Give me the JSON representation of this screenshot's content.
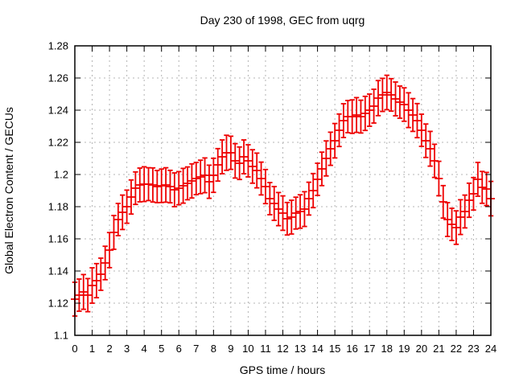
{
  "title": "Day 230 of 1998, GEC from uqrg",
  "x_axis": {
    "label": "GPS time / hours",
    "min": 0,
    "max": 24,
    "tick_labels": [
      "0",
      "1",
      "2",
      "3",
      "4",
      "5",
      "6",
      "7",
      "8",
      "9",
      "10",
      "11",
      "12",
      "13",
      "14",
      "15",
      "16",
      "17",
      "18",
      "19",
      "20",
      "21",
      "22",
      "23",
      "24"
    ]
  },
  "y_axis": {
    "label": "Global Electron Content / GECUs",
    "min": 1.1,
    "max": 1.28,
    "tick_labels": [
      "1.1",
      "1.12",
      "1.14",
      "1.16",
      "1.18",
      "1.2",
      "1.22",
      "1.24",
      "1.26",
      "1.28"
    ],
    "tick_values": [
      1.1,
      1.12,
      1.14,
      1.16,
      1.18,
      1.2,
      1.22,
      1.24,
      1.26,
      1.28
    ]
  },
  "colors": {
    "series": "#ee0000",
    "grid": "#b4b4b4",
    "axis": "#000000",
    "background": "#ffffff",
    "text": "#000000"
  },
  "chart_data": {
    "type": "scatter",
    "style": "errorbars",
    "grid": true,
    "legend": "none",
    "title": "Day 230 of 1998, GEC from uqrg",
    "xlabel": "GPS time / hours",
    "ylabel": "Global Electron Content / GECUs",
    "xlim": [
      0,
      24
    ],
    "ylim": [
      1.1,
      1.28
    ],
    "x": [
      0,
      0.25,
      0.5,
      0.75,
      1,
      1.25,
      1.5,
      1.75,
      2,
      2.25,
      2.5,
      2.75,
      3,
      3.25,
      3.5,
      3.75,
      4,
      4.25,
      4.5,
      4.75,
      5,
      5.25,
      5.5,
      5.75,
      6,
      6.25,
      6.5,
      6.75,
      7,
      7.25,
      7.5,
      7.75,
      8,
      8.25,
      8.5,
      8.75,
      9,
      9.25,
      9.5,
      9.75,
      10,
      10.25,
      10.5,
      10.75,
      11,
      11.25,
      11.5,
      11.75,
      12,
      12.25,
      12.5,
      12.75,
      13,
      13.25,
      13.5,
      13.75,
      14,
      14.25,
      14.5,
      14.75,
      15,
      15.25,
      15.5,
      15.75,
      16,
      16.25,
      16.5,
      16.75,
      17,
      17.25,
      17.5,
      17.75,
      18,
      18.25,
      18.5,
      18.75,
      19,
      19.25,
      19.5,
      19.75,
      20,
      20.25,
      20.5,
      20.75,
      21,
      21.25,
      21.5,
      21.75,
      22,
      22.25,
      22.5,
      22.75,
      23,
      23.25,
      23.5,
      23.75,
      24
    ],
    "y": [
      1.1225,
      1.125,
      1.127,
      1.125,
      1.131,
      1.134,
      1.138,
      1.145,
      1.153,
      1.164,
      1.172,
      1.1765,
      1.18,
      1.186,
      1.1915,
      1.1935,
      1.194,
      1.194,
      1.1935,
      1.1925,
      1.193,
      1.1935,
      1.1925,
      1.1905,
      1.1915,
      1.193,
      1.1945,
      1.196,
      1.1975,
      1.1985,
      1.1995,
      1.1955,
      1.1995,
      1.206,
      1.211,
      1.2135,
      1.2135,
      1.2085,
      1.207,
      1.211,
      1.2085,
      1.205,
      1.2025,
      1.1975,
      1.1925,
      1.185,
      1.182,
      1.1785,
      1.176,
      1.1725,
      1.1735,
      1.176,
      1.177,
      1.1785,
      1.185,
      1.19,
      1.197,
      1.2035,
      1.21,
      1.216,
      1.221,
      1.2275,
      1.2335,
      1.236,
      1.236,
      1.237,
      1.236,
      1.238,
      1.24,
      1.2425,
      1.2475,
      1.2495,
      1.251,
      1.2495,
      1.247,
      1.245,
      1.2435,
      1.24,
      1.237,
      1.2335,
      1.2275,
      1.221,
      1.216,
      1.2085,
      1.1975,
      1.183,
      1.172,
      1.169,
      1.167,
      1.1735,
      1.177,
      1.184,
      1.188,
      1.197,
      1.192,
      1.191,
      1.185
    ],
    "yerr": [
      0.0105,
      0.01,
      0.0108,
      0.0103,
      0.011,
      0.0106,
      0.01,
      0.0104,
      0.0109,
      0.0105,
      0.01,
      0.0107,
      0.0103,
      0.0106,
      0.0101,
      0.0105,
      0.0108,
      0.0102,
      0.0106,
      0.01,
      0.0104,
      0.0107,
      0.0101,
      0.0105,
      0.0103,
      0.0108,
      0.0102,
      0.0106,
      0.01,
      0.0104,
      0.0108,
      0.0103,
      0.0106,
      0.0101,
      0.0105,
      0.0109,
      0.0103,
      0.0107,
      0.0101,
      0.0105,
      0.01,
      0.0104,
      0.0108,
      0.0102,
      0.0106,
      0.01,
      0.0105,
      0.0103,
      0.0107,
      0.0101,
      0.0105,
      0.0099,
      0.0104,
      0.0108,
      0.0102,
      0.0106,
      0.01,
      0.0104,
      0.0109,
      0.0103,
      0.0107,
      0.0101,
      0.0105,
      0.01,
      0.0104,
      0.0108,
      0.0102,
      0.0106,
      0.01,
      0.0105,
      0.0109,
      0.0103,
      0.0107,
      0.0101,
      0.0105,
      0.01,
      0.0104,
      0.0108,
      0.0102,
      0.0106,
      0.01,
      0.0104,
      0.0108,
      0.0103,
      0.0107,
      0.0101,
      0.0105,
      0.01,
      0.0104,
      0.0108,
      0.0102,
      0.0106,
      0.0101,
      0.0105,
      0.0099,
      0.0103,
      0.0107
    ]
  }
}
